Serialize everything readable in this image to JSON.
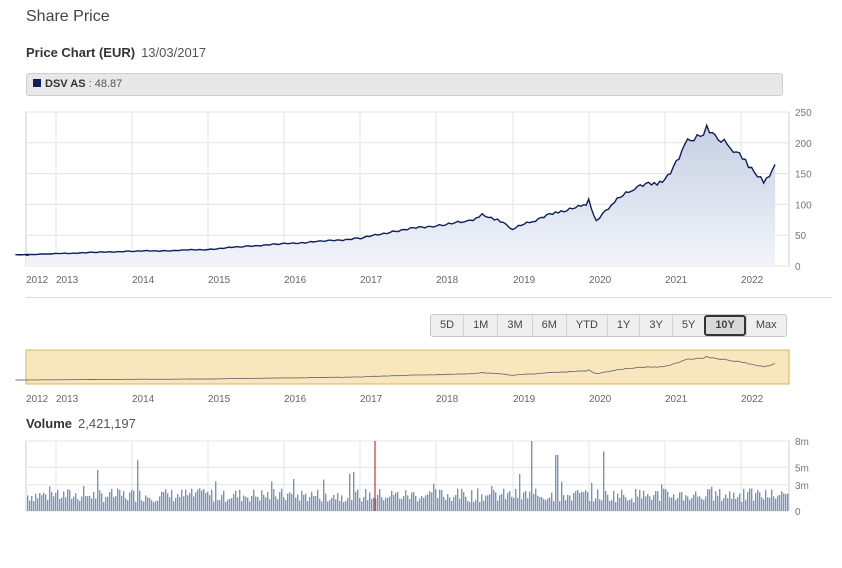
{
  "page": {
    "title": "Share Price",
    "chart_heading": "Price Chart (EUR)",
    "date": "13/03/2017",
    "legend_name": "DSV AS",
    "legend_sep": " : ",
    "legend_value": "48.87",
    "volume_heading": "Volume",
    "volume_value": "2,421,197",
    "range_buttons": [
      "5D",
      "1M",
      "3M",
      "6M",
      "YTD",
      "1Y",
      "3Y",
      "5Y",
      "10Y",
      "Max"
    ],
    "active_range": "10Y"
  },
  "colors": {
    "line": "#0f1f5c",
    "area_top": "#c5d0e3",
    "area_bottom": "#f2f4f9",
    "navigator_bg": "#f8e7bd",
    "navigator_border": "#d8b45d",
    "volume_bar": "#7b93b9",
    "volume_marker": "#cc3333"
  },
  "chart_data": [
    {
      "type": "area",
      "title": "Price Chart (EUR)",
      "x_labels": [
        "2012",
        "2013",
        "2014",
        "2015",
        "2016",
        "2017",
        "2018",
        "2019",
        "2020",
        "2021",
        "2022"
      ],
      "y_ticks": [
        0,
        50,
        100,
        150,
        200,
        250
      ],
      "ylim": [
        0,
        250
      ],
      "series": [
        {
          "name": "DSV AS",
          "x": [
            2012.0,
            2012.4,
            2013.0,
            2013.5,
            2014.0,
            2014.5,
            2015.0,
            2015.5,
            2016.0,
            2016.5,
            2017.0,
            2017.5,
            2018.0,
            2018.4,
            2018.6,
            2018.8,
            2019.0,
            2019.3,
            2019.6,
            2019.9,
            2020.0,
            2020.1,
            2020.3,
            2020.6,
            2020.9,
            2021.0,
            2021.3,
            2021.55,
            2021.7,
            2021.9,
            2022.1,
            2022.3,
            2022.45
          ],
          "y": [
            17,
            18,
            20,
            22,
            24,
            25,
            27,
            32,
            36,
            40,
            45,
            58,
            66,
            72,
            82,
            75,
            60,
            75,
            88,
            96,
            105,
            72,
            100,
            128,
            135,
            140,
            200,
            222,
            205,
            190,
            165,
            135,
            165
          ]
        }
      ]
    },
    {
      "type": "bar",
      "title": "Volume",
      "x_labels": [],
      "y_ticks": [
        "0",
        "3m",
        "5m",
        "8m"
      ],
      "ylim": [
        0,
        8
      ],
      "series": [
        {
          "name": "Volume",
          "values": []
        }
      ]
    }
  ],
  "navigator": {
    "x_labels": [
      "2012",
      "2013",
      "2014",
      "2015",
      "2016",
      "2017",
      "2018",
      "2019",
      "2020",
      "2021",
      "2022"
    ]
  }
}
